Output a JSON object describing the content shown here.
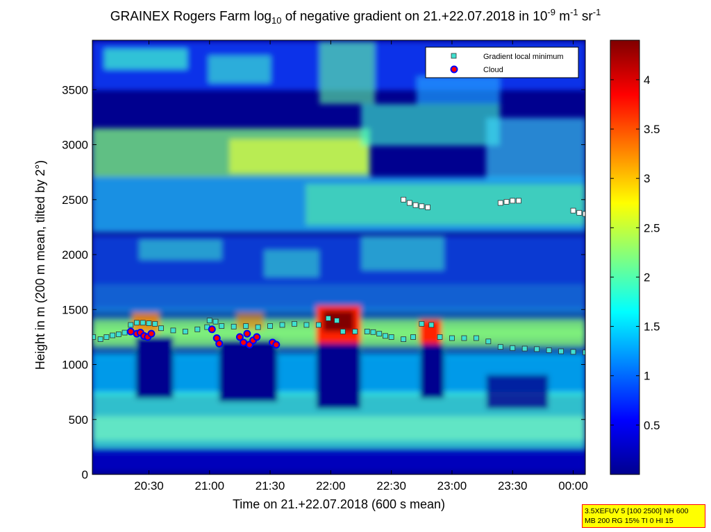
{
  "chart_data": {
    "type": "heatmap",
    "title": {
      "prefix": "GRAINEX Rogers Farm log",
      "sub": "10",
      "middle": " of negative gradient on 21.+22.07.2018 in 10",
      "sup1": "-9",
      "unit1": " m",
      "sup2": "-1",
      "unit2": " sr",
      "sup3": "-1"
    },
    "xlabel": "Time on 21.+22.07.2018 (600 s mean)",
    "ylabel": "Height in m (200 m mean, tilted by 2°)",
    "x_ticks": [
      "20:30",
      "21:00",
      "21:30",
      "22:00",
      "22:30",
      "23:00",
      "23:30",
      "00:00"
    ],
    "x_tick_values": [
      20.5,
      21.0,
      21.5,
      22.0,
      22.5,
      23.0,
      23.5,
      24.0
    ],
    "xlim": [
      20.0333,
      24.1
    ],
    "y_ticks": [
      "0",
      "500",
      "1000",
      "1500",
      "2000",
      "2500",
      "3000",
      "3500"
    ],
    "y_tick_values": [
      0,
      500,
      1000,
      1500,
      2000,
      2500,
      3000,
      3500
    ],
    "ylim": [
      0,
      3950
    ],
    "colorbar": {
      "ticks": [
        "0.5",
        "1",
        "1.5",
        "2",
        "2.5",
        "3",
        "3.5",
        "4"
      ],
      "tick_values": [
        0.5,
        1,
        1.5,
        2,
        2.5,
        3,
        3.5,
        4
      ],
      "range": [
        0,
        4.4
      ]
    },
    "legend": {
      "placement": "top-right",
      "entries": [
        "Gradient local minimum",
        "Cloud"
      ]
    },
    "gradient_local_minimum": [
      [
        20.04,
        1250
      ],
      [
        20.1,
        1230
      ],
      [
        20.15,
        1250
      ],
      [
        20.2,
        1265
      ],
      [
        20.25,
        1275
      ],
      [
        20.3,
        1290
      ],
      [
        20.35,
        1360
      ],
      [
        20.4,
        1380
      ],
      [
        20.45,
        1380
      ],
      [
        20.5,
        1375
      ],
      [
        20.55,
        1370
      ],
      [
        20.6,
        1330
      ],
      [
        20.7,
        1310
      ],
      [
        20.8,
        1300
      ],
      [
        20.9,
        1320
      ],
      [
        20.98,
        1340
      ],
      [
        21.0,
        1400
      ],
      [
        21.05,
        1390
      ],
      [
        21.1,
        1350
      ],
      [
        21.2,
        1345
      ],
      [
        21.3,
        1350
      ],
      [
        21.4,
        1340
      ],
      [
        21.5,
        1350
      ],
      [
        21.6,
        1360
      ],
      [
        21.7,
        1370
      ],
      [
        21.8,
        1360
      ],
      [
        21.9,
        1360
      ],
      [
        21.98,
        1420
      ],
      [
        22.05,
        1400
      ],
      [
        22.1,
        1300
      ],
      [
        22.2,
        1300
      ],
      [
        22.3,
        1300
      ],
      [
        22.35,
        1295
      ],
      [
        22.4,
        1280
      ],
      [
        22.45,
        1260
      ],
      [
        22.5,
        1250
      ],
      [
        22.6,
        1230
      ],
      [
        22.68,
        1250
      ],
      [
        22.75,
        1370
      ],
      [
        22.83,
        1360
      ],
      [
        22.9,
        1250
      ],
      [
        23.0,
        1240
      ],
      [
        23.1,
        1240
      ],
      [
        23.2,
        1240
      ],
      [
        23.3,
        1210
      ],
      [
        23.4,
        1160
      ],
      [
        23.5,
        1150
      ],
      [
        23.6,
        1145
      ],
      [
        23.7,
        1140
      ],
      [
        23.8,
        1130
      ],
      [
        23.9,
        1120
      ],
      [
        24.0,
        1115
      ],
      [
        24.1,
        1110
      ]
    ],
    "upper_minimum": [
      [
        22.6,
        2500
      ],
      [
        22.65,
        2470
      ],
      [
        22.7,
        2450
      ],
      [
        22.75,
        2440
      ],
      [
        22.8,
        2430
      ],
      [
        23.4,
        2470
      ],
      [
        23.45,
        2480
      ],
      [
        23.5,
        2490
      ],
      [
        23.55,
        2490
      ],
      [
        24.0,
        2400
      ],
      [
        24.05,
        2380
      ],
      [
        24.1,
        2370
      ]
    ],
    "cloud": [
      [
        20.4,
        1280
      ],
      [
        20.43,
        1290
      ],
      [
        20.46,
        1260
      ],
      [
        20.49,
        1250
      ],
      [
        20.52,
        1280
      ],
      [
        20.35,
        1300
      ],
      [
        21.02,
        1320
      ],
      [
        21.06,
        1240
      ],
      [
        21.08,
        1190
      ],
      [
        21.25,
        1250
      ],
      [
        21.28,
        1200
      ],
      [
        21.31,
        1280
      ],
      [
        21.33,
        1180
      ],
      [
        21.36,
        1220
      ],
      [
        21.39,
        1250
      ],
      [
        21.52,
        1200
      ],
      [
        21.55,
        1180
      ]
    ]
  },
  "colors": {
    "background_low": "#00008f",
    "colormap": "jet",
    "gradient_minimum_marker": "#40e0d0",
    "upper_minimum_marker": "#ffffff",
    "cloud_marker_fill": "#ff0000",
    "cloud_marker_edge": "#0000ff",
    "infobox_bg": "#ffff00",
    "infobox_border": "#ff0000"
  },
  "infobox": {
    "line1": "3.5XEFUV 5 [100 2500] NH 600",
    "line2": "MB 200 RG 15% TI 0 HI 15"
  }
}
